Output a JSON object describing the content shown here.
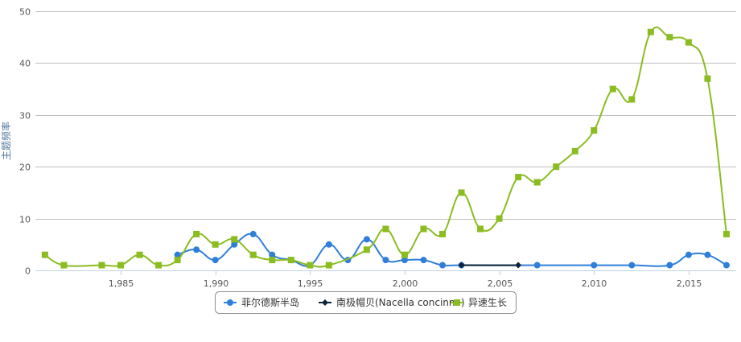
{
  "chart_data": {
    "type": "line",
    "title": "",
    "xlabel": "",
    "ylabel": "主题频率",
    "xlim": [
      1981,
      2017
    ],
    "ylim": [
      0,
      50
    ],
    "x_ticks": [
      1985,
      1990,
      1995,
      2000,
      2005,
      2010,
      2015
    ],
    "x_tick_labels": [
      "1,985",
      "1,990",
      "1,995",
      "2,000",
      "2,005",
      "2,010",
      "2,015"
    ],
    "y_ticks": [
      0,
      10,
      20,
      30,
      40,
      50
    ],
    "grid": "horizontal",
    "legend_position": "bottom-center",
    "series": [
      {
        "name": "菲尔德斯半岛",
        "color": "#2f7ed8",
        "marker": "circle",
        "points": [
          [
            1988,
            3
          ],
          [
            1989,
            4
          ],
          [
            1990,
            2
          ],
          [
            1991,
            5
          ],
          [
            1992,
            7
          ],
          [
            1993,
            3
          ],
          [
            1994,
            2
          ],
          [
            1995,
            1
          ],
          [
            1996,
            5
          ],
          [
            1997,
            2
          ],
          [
            1998,
            6
          ],
          [
            1999,
            2
          ],
          [
            2000,
            2
          ],
          [
            2001,
            2
          ],
          [
            2002,
            1
          ],
          [
            2003,
            1
          ],
          [
            2007,
            1
          ],
          [
            2010,
            1
          ],
          [
            2012,
            1
          ],
          [
            2014,
            1
          ],
          [
            2015,
            3
          ],
          [
            2016,
            3
          ],
          [
            2017,
            1
          ]
        ]
      },
      {
        "name": "南极帽贝(Nacella concinna)",
        "color": "#0d233a",
        "marker": "diamond",
        "points": [
          [
            2003,
            1
          ],
          [
            2006,
            1
          ]
        ]
      },
      {
        "name": "异速生长",
        "color": "#8bbc21",
        "marker": "square",
        "points": [
          [
            1981,
            3
          ],
          [
            1982,
            1
          ],
          [
            1984,
            1
          ],
          [
            1985,
            1
          ],
          [
            1986,
            3
          ],
          [
            1987,
            1
          ],
          [
            1988,
            2
          ],
          [
            1989,
            7
          ],
          [
            1990,
            5
          ],
          [
            1991,
            6
          ],
          [
            1992,
            3
          ],
          [
            1993,
            2
          ],
          [
            1994,
            2
          ],
          [
            1995,
            1
          ],
          [
            1996,
            1
          ],
          [
            1998,
            4
          ],
          [
            1999,
            8
          ],
          [
            2000,
            3
          ],
          [
            2001,
            8
          ],
          [
            2002,
            7
          ],
          [
            2003,
            15
          ],
          [
            2004,
            8
          ],
          [
            2005,
            10
          ],
          [
            2006,
            18
          ],
          [
            2007,
            17
          ],
          [
            2008,
            20
          ],
          [
            2009,
            23
          ],
          [
            2010,
            27
          ],
          [
            2011,
            35
          ],
          [
            2012,
            33
          ],
          [
            2013,
            46
          ],
          [
            2014,
            45
          ],
          [
            2015,
            44
          ],
          [
            2016,
            37
          ],
          [
            2017,
            7
          ]
        ]
      }
    ]
  }
}
